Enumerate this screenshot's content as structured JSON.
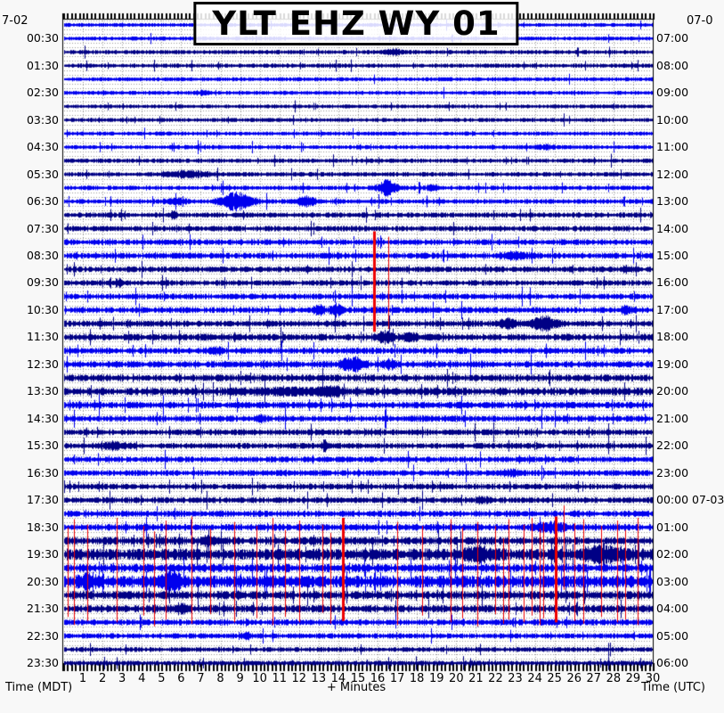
{
  "header": {
    "title": "YLT EHZ WY 01",
    "date_top_left": "7-02",
    "date_top_right": "07-0"
  },
  "axes": {
    "bottom_left": "Time (MDT)",
    "bottom_center": "+ Minutes",
    "bottom_right": "Time (UTC)"
  },
  "chart_data": {
    "type": "line",
    "subtype": "helicorder-seismogram",
    "title": "YLT EHZ WY 01",
    "rows": 48,
    "minutes_per_row": 30,
    "x_axis": {
      "label": "+ Minutes",
      "range": [
        0,
        30
      ],
      "tick_labels": [
        "1",
        "2",
        "3",
        "4",
        "5",
        "6",
        "7",
        "8",
        "9",
        "10",
        "11",
        "12",
        "13",
        "14",
        "15",
        "16",
        "17",
        "18",
        "19",
        "20",
        "21",
        "22",
        "23",
        "24",
        "25",
        "26",
        "27",
        "28",
        "29",
        "30"
      ]
    },
    "left_axis": {
      "label": "Time (MDT)",
      "date": "7-02",
      "tick_labels": [
        "00:30",
        "01:30",
        "02:30",
        "03:30",
        "04:30",
        "05:30",
        "06:30",
        "07:30",
        "08:30",
        "09:30",
        "10:30",
        "11:30",
        "12:30",
        "13:30",
        "14:30",
        "15:30",
        "16:30",
        "17:30",
        "18:30",
        "19:30",
        "20:30",
        "21:30",
        "22:30",
        "23:30"
      ]
    },
    "right_axis": {
      "label": "Time (UTC)",
      "date": "07-0",
      "tick_labels": [
        "07:00",
        "08:00",
        "09:00",
        "10:00",
        "11:00",
        "12:00",
        "13:00",
        "14:00",
        "15:00",
        "16:00",
        "17:00",
        "18:00",
        "19:00",
        "20:00",
        "21:00",
        "22:00",
        "23:00",
        "00:00 07-03",
        "01:00",
        "02:00",
        "03:00",
        "04:00",
        "05:00",
        "06:00"
      ]
    },
    "colors": {
      "even_hour_trace": "#0000ee",
      "odd_hour_trace": "#000085",
      "event_marker": "#ee0000",
      "grid": "#999999",
      "frame": "#000000",
      "plot_background": "#ffffff",
      "page_background": "#f8f8f8"
    },
    "row_base_amplitudes": [
      1.6,
      1.7,
      1.8,
      1.8,
      1.7,
      1.7,
      1.6,
      1.7,
      1.7,
      1.8,
      1.8,
      1.9,
      1.9,
      2.0,
      2.2,
      2.3,
      2.4,
      2.5,
      2.4,
      2.3,
      2.4,
      2.5,
      2.6,
      2.8,
      2.6,
      2.7,
      2.8,
      3.2,
      2.8,
      2.6,
      2.5,
      2.4,
      2.4,
      2.5,
      2.4,
      2.5,
      2.6,
      2.8,
      3.2,
      4.8,
      3.4,
      5.0,
      3.4,
      3.0,
      2.6,
      2.2,
      2.0,
      2.0
    ],
    "bursts": [
      {
        "row": 2,
        "minute": 16.8,
        "amp": 2.5,
        "width": 1.0
      },
      {
        "row": 5,
        "minute": 7.0,
        "amp": 2.0,
        "width": 0.6
      },
      {
        "row": 9,
        "minute": 24.5,
        "amp": 2.0,
        "width": 0.8
      },
      {
        "row": 11,
        "minute": 6.2,
        "amp": 3.5,
        "width": 2.2
      },
      {
        "row": 12,
        "minute": 16.5,
        "amp": 9,
        "width": 0.9
      },
      {
        "row": 12,
        "minute": 18.8,
        "amp": 3,
        "width": 0.5
      },
      {
        "row": 13,
        "minute": 5.7,
        "amp": 3,
        "width": 1.0
      },
      {
        "row": 13,
        "minute": 8.8,
        "amp": 10,
        "width": 1.6
      },
      {
        "row": 13,
        "minute": 12.3,
        "amp": 5,
        "width": 0.9
      },
      {
        "row": 14,
        "minute": 5.6,
        "amp": 3,
        "width": 0.3
      },
      {
        "row": 17,
        "minute": 22.9,
        "amp": 3,
        "width": 1.5
      },
      {
        "row": 18,
        "minute": 28.6,
        "amp": 3,
        "width": 0.5
      },
      {
        "row": 19,
        "minute": 2.8,
        "amp": 3,
        "width": 0.5
      },
      {
        "row": 21,
        "minute": 13.0,
        "amp": 5,
        "width": 0.5
      },
      {
        "row": 21,
        "minute": 13.9,
        "amp": 6,
        "width": 0.6
      },
      {
        "row": 21,
        "minute": 28.7,
        "amp": 4,
        "width": 0.7
      },
      {
        "row": 22,
        "minute": 22.6,
        "amp": 4,
        "width": 0.9
      },
      {
        "row": 22,
        "minute": 24.4,
        "amp": 7,
        "width": 1.2
      },
      {
        "row": 23,
        "minute": 16.3,
        "amp": 5,
        "width": 0.9
      },
      {
        "row": 23,
        "minute": 17.6,
        "amp": 4,
        "width": 0.7
      },
      {
        "row": 24,
        "minute": 7.7,
        "amp": 3,
        "width": 0.7
      },
      {
        "row": 25,
        "minute": 14.7,
        "amp": 8,
        "width": 1.1
      },
      {
        "row": 25,
        "minute": 16.6,
        "amp": 4,
        "width": 0.7
      },
      {
        "row": 27,
        "minute": 11.5,
        "amp": 2.5,
        "width": 4.0
      },
      {
        "row": 27,
        "minute": 13.6,
        "amp": 4,
        "width": 1.0
      },
      {
        "row": 29,
        "minute": 10.0,
        "amp": 2.5,
        "width": 0.5
      },
      {
        "row": 31,
        "minute": 2.5,
        "amp": 3,
        "width": 1.5
      },
      {
        "row": 31,
        "minute": 13.3,
        "amp": 6,
        "width": 0.25
      },
      {
        "row": 33,
        "minute": 22.8,
        "amp": 3,
        "width": 0.9
      },
      {
        "row": 35,
        "minute": 21.3,
        "amp": 3,
        "width": 0.6
      },
      {
        "row": 37,
        "minute": 24.8,
        "amp": 4,
        "width": 1.5
      },
      {
        "row": 38,
        "minute": 7.3,
        "amp": 4,
        "width": 0.8
      },
      {
        "row": 39,
        "minute": 21.0,
        "amp": 6,
        "width": 1.2
      },
      {
        "row": 39,
        "minute": 27.5,
        "amp": 7,
        "width": 2.2
      },
      {
        "row": 41,
        "minute": 1.2,
        "amp": 7,
        "width": 0.8
      },
      {
        "row": 41,
        "minute": 5.5,
        "amp": 9,
        "width": 1.0
      },
      {
        "row": 43,
        "minute": 6.0,
        "amp": 4,
        "width": 0.8
      },
      {
        "row": 45,
        "minute": 9.3,
        "amp": 3,
        "width": 0.6
      }
    ],
    "red_event_lines": [
      {
        "m": 15.85,
        "r0": 15.2,
        "r1": 22.6,
        "w": 3
      },
      {
        "m": 16.55,
        "r0": 15.6,
        "r1": 22.4,
        "w": 1.2
      },
      {
        "m": 0.27,
        "r0": 37.0,
        "r1": 43.6,
        "w": 1.2
      },
      {
        "m": 0.55,
        "r0": 36.4,
        "r1": 44.2,
        "w": 1.2
      },
      {
        "m": 1.27,
        "r0": 36.8,
        "r1": 43.9,
        "w": 1.2
      },
      {
        "m": 2.73,
        "r0": 36.3,
        "r1": 44.0,
        "w": 1.2
      },
      {
        "m": 4.09,
        "r0": 36.9,
        "r1": 43.5,
        "w": 1.2
      },
      {
        "m": 4.64,
        "r0": 37.3,
        "r1": 44.3,
        "w": 1.2
      },
      {
        "m": 5.23,
        "r0": 36.5,
        "r1": 43.8,
        "w": 1.2
      },
      {
        "m": 6.55,
        "r0": 36.2,
        "r1": 44.1,
        "w": 1.2
      },
      {
        "m": 7.5,
        "r0": 37.1,
        "r1": 43.4,
        "w": 1.2
      },
      {
        "m": 8.73,
        "r0": 36.6,
        "r1": 44.0,
        "w": 1.2
      },
      {
        "m": 9.86,
        "r0": 36.9,
        "r1": 43.7,
        "w": 1.2
      },
      {
        "m": 10.68,
        "r0": 36.3,
        "r1": 44.2,
        "w": 1.2
      },
      {
        "m": 11.32,
        "r0": 37.2,
        "r1": 43.6,
        "w": 1.2
      },
      {
        "m": 12.05,
        "r0": 36.5,
        "r1": 44.0,
        "w": 1.2
      },
      {
        "m": 13.23,
        "r0": 36.8,
        "r1": 43.3,
        "w": 1.2
      },
      {
        "m": 13.64,
        "r0": 37.4,
        "r1": 44.1,
        "w": 1.2
      },
      {
        "m": 14.27,
        "r0": 36.3,
        "r1": 43.9,
        "w": 3
      },
      {
        "m": 17.0,
        "r0": 36.6,
        "r1": 44.2,
        "w": 1.2
      },
      {
        "m": 18.27,
        "r0": 36.9,
        "r1": 43.5,
        "w": 1.2
      },
      {
        "m": 19.73,
        "r0": 36.4,
        "r1": 44.0,
        "w": 1.2
      },
      {
        "m": 20.32,
        "r0": 37.0,
        "r1": 43.7,
        "w": 1.2
      },
      {
        "m": 21.09,
        "r0": 36.6,
        "r1": 44.3,
        "w": 1.2
      },
      {
        "m": 22.0,
        "r0": 36.9,
        "r1": 43.4,
        "w": 1.2
      },
      {
        "m": 22.4,
        "r0": 37.8,
        "r1": 44.1,
        "w": 1.2
      },
      {
        "m": 22.68,
        "r0": 36.4,
        "r1": 43.8,
        "w": 1.2
      },
      {
        "m": 23.45,
        "r0": 36.8,
        "r1": 44.0,
        "w": 1.2
      },
      {
        "m": 23.86,
        "r0": 36.3,
        "r1": 43.5,
        "w": 1.2
      },
      {
        "m": 24.27,
        "r0": 37.1,
        "r1": 44.2,
        "w": 1.2
      },
      {
        "m": 24.45,
        "r0": 36.6,
        "r1": 43.7,
        "w": 1.2
      },
      {
        "m": 25.05,
        "r0": 36.2,
        "r1": 44.0,
        "w": 2.5
      },
      {
        "m": 25.5,
        "r0": 35.4,
        "r1": 41.6,
        "w": 1.2
      },
      {
        "m": 26.05,
        "r0": 36.7,
        "r1": 43.9,
        "w": 1.2
      },
      {
        "m": 26.5,
        "r0": 36.4,
        "r1": 44.1,
        "w": 1.2
      },
      {
        "m": 27.4,
        "r0": 36.9,
        "r1": 43.6,
        "w": 1.2
      },
      {
        "m": 28.23,
        "r0": 36.5,
        "r1": 44.0,
        "w": 1.2
      },
      {
        "m": 28.64,
        "r0": 37.2,
        "r1": 43.8,
        "w": 1.2
      },
      {
        "m": 29.27,
        "r0": 36.3,
        "r1": 44.2,
        "w": 1.2
      }
    ]
  }
}
